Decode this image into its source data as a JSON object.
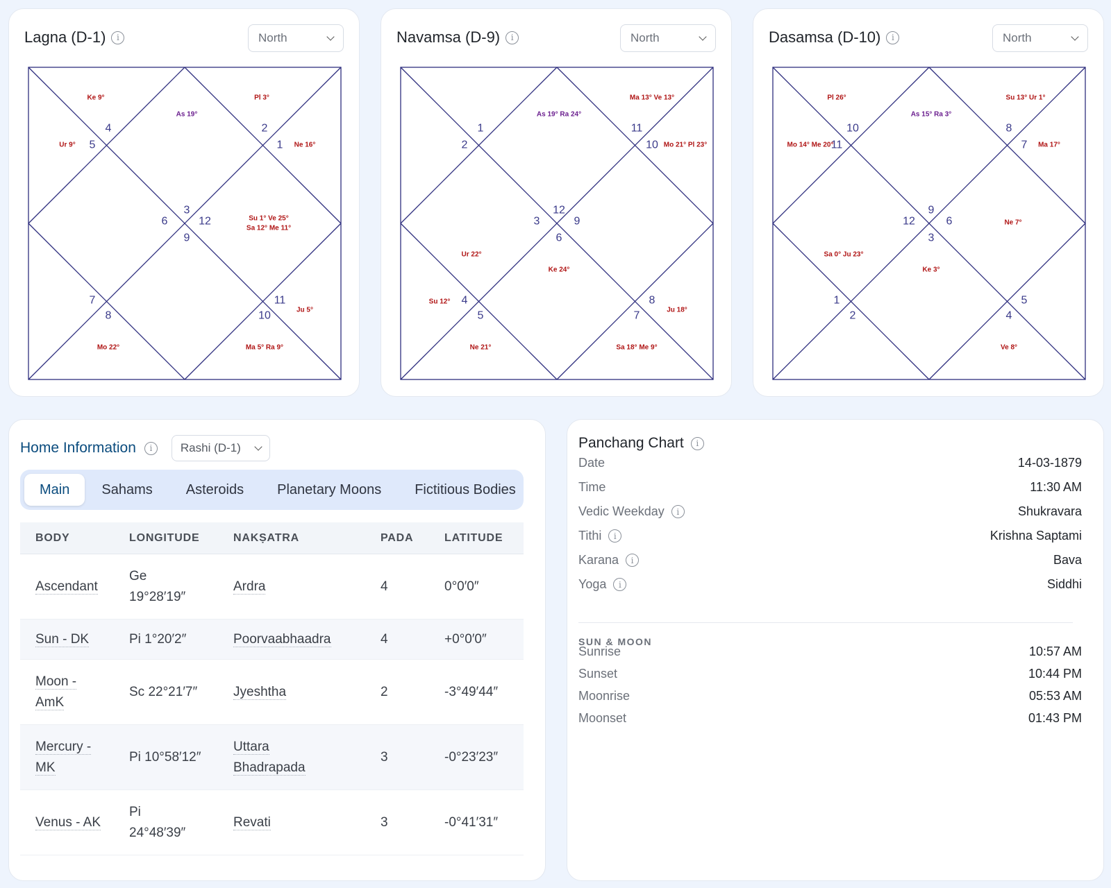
{
  "charts": [
    {
      "title": "Lagna (D-1)",
      "style": "North",
      "houses": [
        "4",
        "5",
        "2",
        "1",
        "3",
        "6",
        "12",
        "9",
        "7",
        "8",
        "11",
        "10"
      ],
      "planets": [
        "Ke 9°",
        "As 19°",
        "Pl 3°",
        "Ur 9°",
        "Ne 16°",
        "Su 1° Ve 25°",
        "Sa 12° Me 11°",
        "Ju 5°",
        "Mo 22°",
        "Ma 5° Ra 9°"
      ]
    },
    {
      "title": "Navamsa (D-9)",
      "style": "North",
      "houses": [
        "1",
        "2",
        "11",
        "10",
        "12",
        "3",
        "9",
        "6",
        "4",
        "5",
        "8",
        "7"
      ],
      "planets": [
        "Ma 13° Ve 13°",
        "As 19° Ra 24°",
        "Mo 21° Pl 23°",
        "Ur 22°",
        "Ke 24°",
        "Su 12°",
        "Ju 18°",
        "Ne 21°",
        "Sa 18° Me 9°"
      ]
    },
    {
      "title": "Dasamsa (D-10)",
      "style": "North",
      "houses": [
        "10",
        "11",
        "8",
        "7",
        "9",
        "12",
        "6",
        "3",
        "1",
        "2",
        "5",
        "4"
      ],
      "planets": [
        "Pl 26°",
        "As 15° Ra 3°",
        "Su 13° Ur 1°",
        "Mo 14° Me 20°",
        "Ma 17°",
        "Ne 7°",
        "Sa 0° Ju 23°",
        "Ke 3°",
        "Ve 8°"
      ]
    }
  ],
  "home": {
    "title": "Home Information",
    "select": "Rashi (D-1)",
    "tabs": [
      "Main",
      "Sahams",
      "Asteroids",
      "Planetary Moons",
      "Fictitious Bodies"
    ],
    "columns": [
      "BODY",
      "LONGITUDE",
      "NAKṢATRA",
      "PADA",
      "LATITUDE"
    ],
    "rows": [
      {
        "body": [
          "Ascendant"
        ],
        "longitude": [
          "Ge",
          "19°28′19″"
        ],
        "nakshatra": [
          "Ardra"
        ],
        "pada": "4",
        "latitude": "0°0′0″"
      },
      {
        "body": [
          "Sun - DK"
        ],
        "longitude": [
          "Pi 1°20′2″"
        ],
        "nakshatra": [
          "Poorvaabhaadra"
        ],
        "pada": "4",
        "latitude": "+0°0′0″"
      },
      {
        "body": [
          "Moon -",
          "AmK"
        ],
        "longitude": [
          "Sc 22°21′7″"
        ],
        "nakshatra": [
          "Jyeshtha"
        ],
        "pada": "2",
        "latitude": "-3°49′44″"
      },
      {
        "body": [
          "Mercury -",
          "MK"
        ],
        "longitude": [
          "Pi 10°58′12″"
        ],
        "nakshatra": [
          "Uttara",
          "Bhadrapada"
        ],
        "pada": "3",
        "latitude": "-0°23′23″"
      },
      {
        "body": [
          "Venus - AK"
        ],
        "longitude": [
          "Pi",
          "24°48′39″"
        ],
        "nakshatra": [
          "Revati"
        ],
        "pada": "3",
        "latitude": "-0°41′31″"
      }
    ]
  },
  "panchang": {
    "title": "Panchang Chart",
    "items": [
      {
        "label": "Date",
        "value": "14-03-1879",
        "info": false
      },
      {
        "label": "Time",
        "value": "11:30 AM",
        "info": false
      },
      {
        "label": "Vedic Weekday",
        "value": "Shukravara",
        "info": true
      },
      {
        "label": "Tithi",
        "value": "Krishna Saptami",
        "info": true
      },
      {
        "label": "Karana",
        "value": "Bava",
        "info": true
      },
      {
        "label": "Yoga",
        "value": "Siddhi",
        "info": true
      }
    ],
    "section": "SUN & MOON",
    "sun_moon": [
      {
        "label": "Sunrise",
        "value": "10:57 AM"
      },
      {
        "label": "Sunset",
        "value": "10:44 PM"
      },
      {
        "label": "Moonrise",
        "value": "05:53 AM"
      },
      {
        "label": "Moonset",
        "value": "01:43 PM"
      }
    ]
  }
}
